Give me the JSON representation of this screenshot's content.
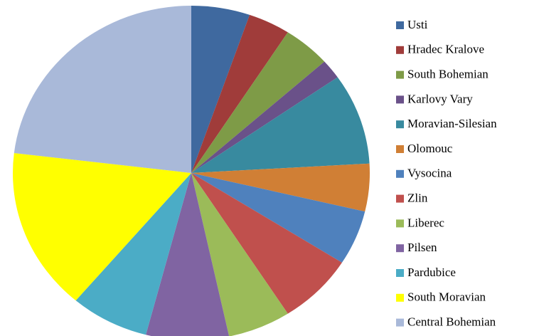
{
  "chart_data": {
    "type": "pie",
    "categories": [
      "Usti",
      "Hradec Kralove",
      "South Bohemian",
      "Karlovy Vary",
      "Moravian-Silesian",
      "Olomouc",
      "Vysocina",
      "Zlin",
      "Liberec",
      "Pilsen",
      "Pardubice",
      "South Moravian",
      "Central Bohemian"
    ],
    "values": [
      5.3,
      3.8,
      4.3,
      1.9,
      8.8,
      4.6,
      5.3,
      6.9,
      5.7,
      7.5,
      7.1,
      15.7,
      23.1
    ],
    "colors": [
      "#3f699f",
      "#a03c3a",
      "#7e9b47",
      "#6a5189",
      "#388a9f",
      "#d07f35",
      "#4f81bd",
      "#c0504d",
      "#9bbb59",
      "#8064a2",
      "#4bacc6",
      "#ffff00",
      "#a9b9d9"
    ],
    "legend": "right"
  }
}
